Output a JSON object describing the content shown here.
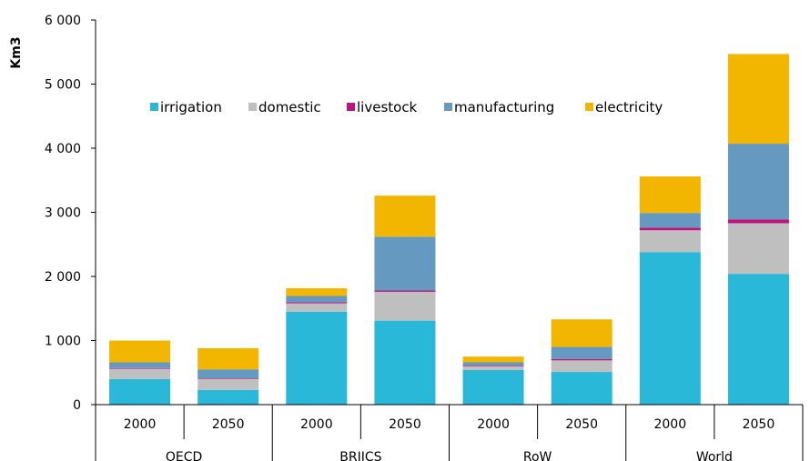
{
  "chart_data": {
    "type": "bar",
    "stacked": true,
    "title": "",
    "ylabel": "Km3",
    "ylim": [
      0,
      6000
    ],
    "yticks": [
      0,
      1000,
      2000,
      3000,
      4000,
      5000,
      6000
    ],
    "ytick_labels": [
      "0",
      "1 000",
      "2 000",
      "3 000",
      "4 000",
      "5 000",
      "6 000"
    ],
    "categories": [
      "2000",
      "2050",
      "2000",
      "2050",
      "2000",
      "2050",
      "2000",
      "2050"
    ],
    "groups": [
      {
        "label": "OECD",
        "span": 2
      },
      {
        "label": "BRIICS",
        "span": 2
      },
      {
        "label": "RoW",
        "span": 2
      },
      {
        "label": "World",
        "span": 2
      }
    ],
    "legend_position": "top-left",
    "grid": false,
    "series": [
      {
        "name": "irrigation",
        "color": "#29b8d8",
        "values": [
          400,
          230,
          1450,
          1310,
          540,
          510,
          2380,
          2040
        ]
      },
      {
        "name": "domestic",
        "color": "#bfbfbf",
        "values": [
          160,
          170,
          130,
          450,
          60,
          180,
          340,
          790
        ]
      },
      {
        "name": "livestock",
        "color": "#c0137b",
        "values": [
          10,
          10,
          15,
          20,
          10,
          20,
          40,
          60
        ]
      },
      {
        "name": "manufacturing",
        "color": "#6699bf",
        "values": [
          90,
          140,
          100,
          840,
          50,
          190,
          230,
          1180
        ]
      },
      {
        "name": "electricity",
        "color": "#f2b600",
        "values": [
          340,
          330,
          120,
          640,
          90,
          430,
          570,
          1400
        ]
      }
    ]
  }
}
